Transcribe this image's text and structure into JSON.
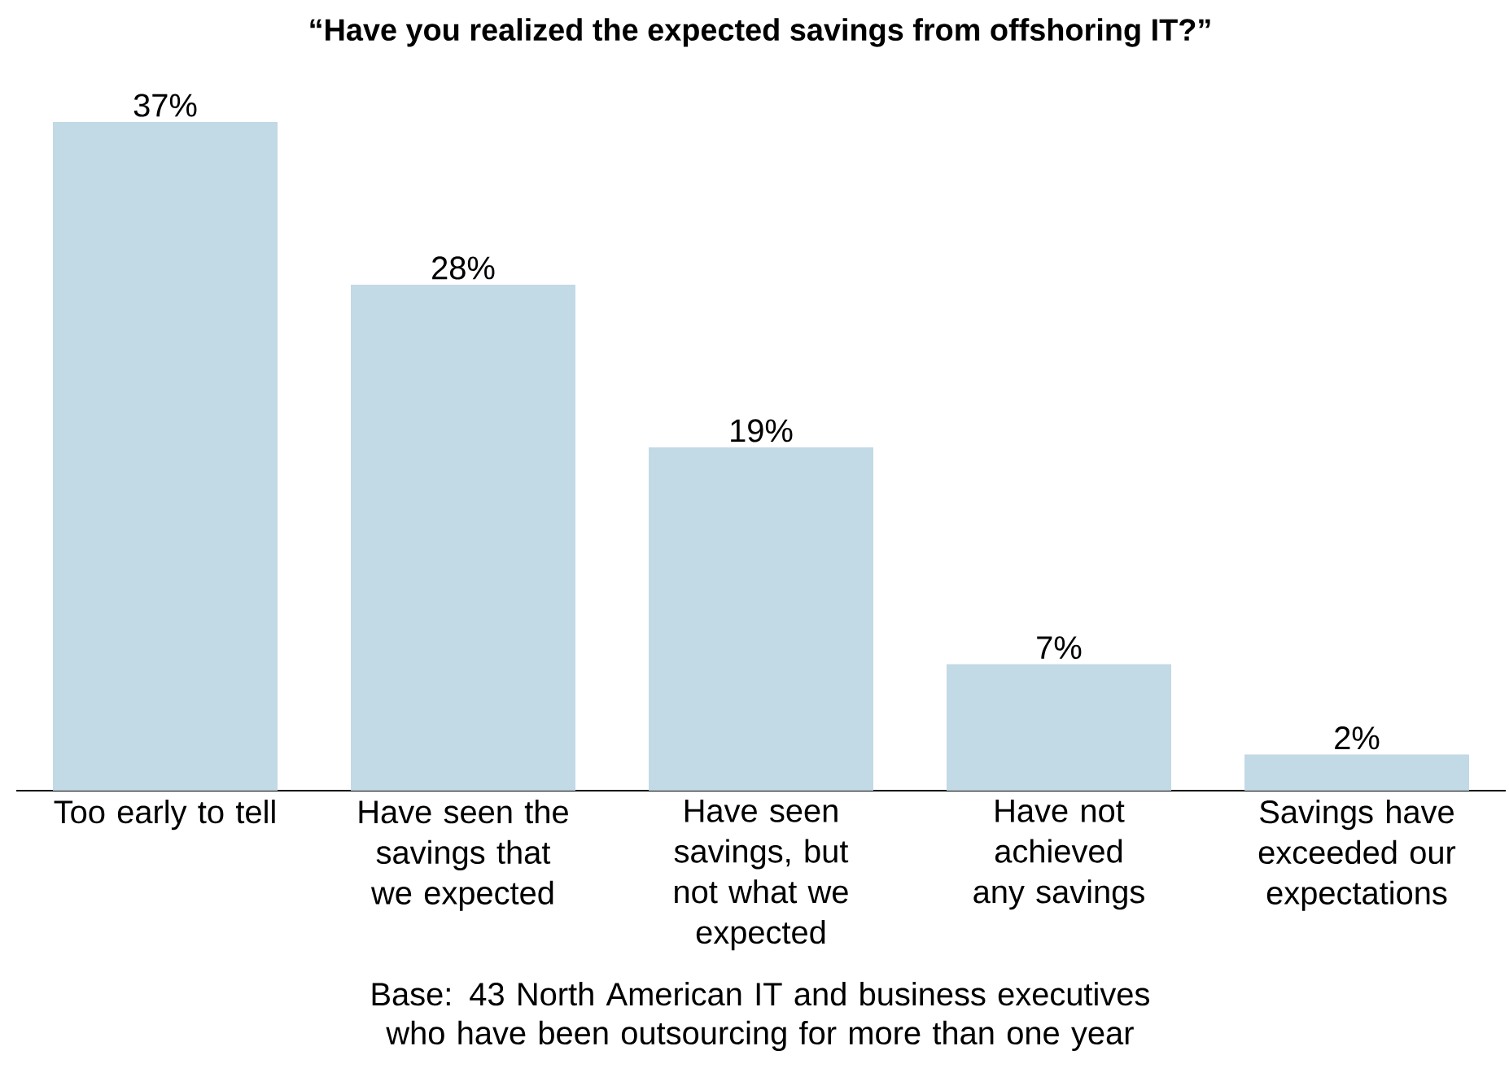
{
  "chart_data": {
    "type": "bar",
    "title": "“Have you realized the expected savings from offshoring IT?”",
    "categories": [
      "Too early to tell",
      "Have seen the savings that we expected",
      "Have seen savings, but not what we expected",
      "Have not achieved any savings",
      "Savings have exceeded our expectations"
    ],
    "values": [
      37,
      28,
      19,
      7,
      2
    ],
    "value_labels": [
      "37%",
      "28%",
      "19%",
      "7%",
      "2%"
    ],
    "color": "#c2d9e6",
    "annotations": [
      "Base: 43 North American IT and business executives who have been outsourcing for more than one year"
    ]
  }
}
